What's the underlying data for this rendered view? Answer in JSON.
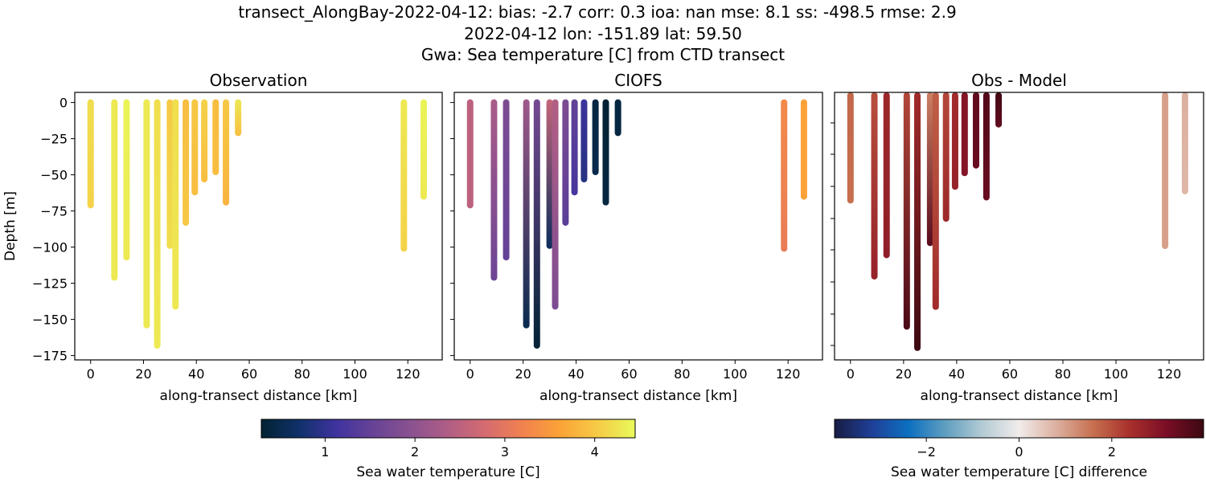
{
  "title_lines": [
    "transect_AlongBay-2022-04-12: bias: -2.7  corr: 0.3  ioa: nan  mse: 8.1  ss: -498.5  rmse: 2.9",
    "2022-04-12 lon: -151.89 lat: 59.50",
    "Gwa: Sea temperature [C] from CTD transect"
  ],
  "chart_data": [
    {
      "type": "scatter",
      "title": "Observation",
      "xlabel": "along-transect distance [km]",
      "ylabel": "Depth [m]",
      "xlim": [
        -6,
        133
      ],
      "ylim": [
        -178,
        7
      ],
      "xticks": [
        0,
        20,
        40,
        60,
        80,
        100,
        120
      ],
      "yticks": [
        0,
        -25,
        -50,
        -75,
        -100,
        -125,
        -150,
        -175
      ],
      "colormap": "thermal",
      "value_key": "obs"
    },
    {
      "type": "scatter",
      "title": "CIOFS",
      "xlabel": "along-transect distance [km]",
      "xlim": [
        -6,
        133
      ],
      "ylim": [
        -178,
        7
      ],
      "xticks": [
        0,
        20,
        40,
        60,
        80,
        100,
        120
      ],
      "colormap": "thermal",
      "value_key": "model"
    },
    {
      "type": "scatter",
      "title": "Obs - Model",
      "xlabel": "along-transect distance [km]",
      "xlim": [
        -6,
        133
      ],
      "ylim": [
        -176,
        0
      ],
      "xticks": [
        0,
        20,
        40,
        60,
        80,
        100,
        120
      ],
      "colormap": "balance",
      "value_key": "diff"
    }
  ],
  "casts": [
    {
      "x": 0,
      "depth": -71,
      "obs": [
        4.2,
        4.1
      ],
      "model": [
        2.5,
        2.5
      ]
    },
    {
      "x": 9,
      "depth": -121,
      "obs": [
        4.3,
        4.3
      ],
      "model": [
        2.3,
        1.6
      ]
    },
    {
      "x": 13.6,
      "depth": -107,
      "obs": [
        4.4,
        4.3
      ],
      "model": [
        1.8,
        1.5
      ]
    },
    {
      "x": 21.2,
      "depth": -154,
      "obs": [
        4.3,
        4.3
      ],
      "model": [
        2.2,
        0.5
      ]
    },
    {
      "x": 25.2,
      "depth": -168,
      "obs": [
        4.2,
        4.3
      ],
      "model": [
        1.7,
        0.3
      ]
    },
    {
      "x": 30,
      "depth": -99,
      "obs": [
        4.0,
        4.2
      ],
      "model": [
        2.6,
        0.6
      ]
    },
    {
      "x": 32.1,
      "depth": -141,
      "obs": [
        4.2,
        4.3
      ],
      "model": [
        2.4,
        1.8
      ]
    },
    {
      "x": 36,
      "depth": -83,
      "obs": [
        3.9,
        4.0
      ],
      "model": [
        1.8,
        1.4
      ]
    },
    {
      "x": 39.4,
      "depth": -62,
      "obs": [
        4.0,
        3.9
      ],
      "model": [
        1.5,
        1.2
      ]
    },
    {
      "x": 43,
      "depth": -53,
      "obs": [
        4.1,
        3.9
      ],
      "model": [
        1.1,
        0.9
      ]
    },
    {
      "x": 47.3,
      "depth": -48,
      "obs": [
        3.9,
        3.9
      ],
      "model": [
        0.4,
        0.5
      ]
    },
    {
      "x": 51.2,
      "depth": -69,
      "obs": [
        4.0,
        3.8
      ],
      "model": [
        0.3,
        0.4
      ]
    },
    {
      "x": 55.8,
      "depth": -21,
      "obs": [
        4.3,
        3.9
      ],
      "model": [
        0.4,
        0.4
      ]
    },
    {
      "x": 118.5,
      "depth": -101,
      "obs": [
        4.3,
        4.1
      ],
      "model": [
        3.3,
        3.1
      ]
    },
    {
      "x": 126,
      "depth": -65,
      "obs": [
        4.4,
        4.3
      ],
      "model": [
        3.6,
        3.6
      ]
    }
  ],
  "colorbars": [
    {
      "label": "Sea water temperature [C]",
      "range": [
        0.29,
        4.45
      ],
      "ticks": [
        1,
        2,
        3,
        4
      ],
      "colormap": "thermal"
    },
    {
      "label": "Sea water temperature [C] difference",
      "range": [
        -3.98,
        3.98
      ],
      "ticks": [
        -2,
        0,
        2
      ],
      "colormap": "balance"
    }
  ],
  "colormaps": {
    "thermal": [
      "#032333",
      "#0f3169",
      "#3f339f",
      "#674396",
      "#8a5290",
      "#b05e86",
      "#d56b70",
      "#f1824f",
      "#fba337",
      "#f6cb46",
      "#e8fa5b"
    ],
    "balance": [
      "#181c43",
      "#1f3f97",
      "#0c6fc0",
      "#5f9ec0",
      "#b3cbd4",
      "#f1eceb",
      "#dcb0a0",
      "#c7704f",
      "#a8302c",
      "#7a0d26",
      "#3c0912"
    ]
  }
}
